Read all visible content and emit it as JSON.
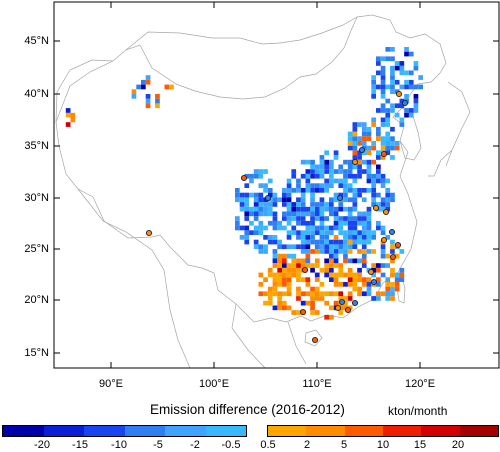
{
  "map": {
    "lat_labels": [
      "45°N",
      "40°N",
      "35°N",
      "30°N",
      "25°N",
      "20°N",
      "15°N"
    ],
    "lon_labels": [
      "90°E",
      "100°E",
      "110°E",
      "120°E"
    ],
    "extent": {
      "lon_min": 82,
      "lon_max": 130,
      "lat_min": 13.5,
      "lat_max": 48.5
    }
  },
  "colorbar": {
    "title": "Emission difference (2016-2012)",
    "units": "kton/month",
    "negative_colors": [
      "#0000a8",
      "#0a1fd6",
      "#1a44f0",
      "#2e7ff2",
      "#3fa4ff",
      "#38b8ff"
    ],
    "positive_colors": [
      "#ffa500",
      "#ff8c00",
      "#ff5a00",
      "#f01e00",
      "#d20000",
      "#a50000"
    ],
    "negative_ticks": [
      "-20",
      "-15",
      "-10",
      "-5",
      "-2",
      "-0.5"
    ],
    "positive_ticks": [
      "0.5",
      "2",
      "5",
      "10",
      "15",
      "20"
    ]
  }
}
